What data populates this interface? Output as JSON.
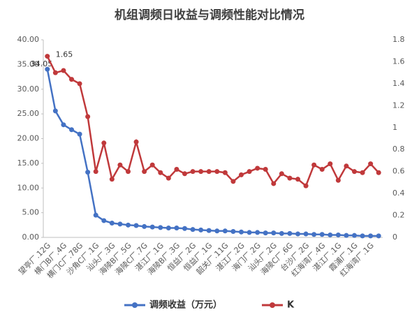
{
  "chart_data": {
    "type": "line",
    "title": "机组调频日收益与调频性能对比情况",
    "categories": [
      "望亭厂.12G",
      null,
      "横门B厂.4G",
      null,
      "横门C厂.78G",
      null,
      "沙角C厂.1G",
      null,
      "汕头厂.3G",
      null,
      "海陵B厂.5G",
      null,
      "海陵C厂.7G",
      null,
      "湛江厂.1G",
      null,
      "海陵B厂.3G",
      null,
      "恒益厂.2G",
      null,
      "恒益厂.1G",
      null,
      "韶关厂.11G",
      null,
      "湛江厂.2G",
      null,
      "海门厂.2G",
      null,
      "汕头厂.2G",
      null,
      "海陵C厂.6G",
      null,
      "台沙厂.2G",
      null,
      "红海湾厂.4G",
      null,
      "湛江厂.1G",
      null,
      "霞浦厂.1G",
      null,
      "红海湾厂.1G",
      null
    ],
    "series": [
      {
        "name": "调频收益（万元）",
        "color": "#4472c4",
        "values": [
          34.05,
          25.6,
          22.8,
          21.8,
          20.9,
          13.2,
          4.5,
          3.4,
          2.9,
          2.7,
          2.5,
          2.4,
          2.2,
          2.1,
          2.0,
          1.9,
          1.9,
          1.8,
          1.6,
          1.5,
          1.4,
          1.3,
          1.3,
          1.2,
          1.1,
          1.0,
          1.0,
          0.9,
          0.9,
          0.8,
          0.8,
          0.7,
          0.7,
          0.6,
          0.6,
          0.5,
          0.5,
          0.4,
          0.4,
          0.3,
          0.3,
          0.3
        ]
      },
      {
        "name": "K",
        "color": "#c0393b",
        "axis": "y2",
        "values": [
          1.65,
          1.5,
          1.52,
          1.44,
          1.4,
          1.1,
          0.6,
          0.86,
          0.53,
          0.66,
          0.6,
          0.87,
          0.6,
          0.66,
          0.59,
          0.54,
          0.62,
          0.58,
          0.6,
          0.6,
          0.6,
          0.6,
          0.59,
          0.51,
          0.57,
          0.6,
          0.63,
          0.62,
          0.49,
          0.58,
          0.54,
          0.53,
          0.47,
          0.66,
          0.62,
          0.67,
          0.52,
          0.65,
          0.6,
          0.59,
          0.67,
          0.59
        ]
      }
    ],
    "ylim": [
      0,
      40
    ],
    "yticks": [
      {
        "value": 0,
        "label": "0.00"
      },
      {
        "value": 5,
        "label": "5.00"
      },
      {
        "value": 10,
        "label": "10.00"
      },
      {
        "value": 15,
        "label": "15.00"
      },
      {
        "value": 20,
        "label": "20.00"
      },
      {
        "value": 25,
        "label": "25.00"
      },
      {
        "value": 30,
        "label": "30.00"
      },
      {
        "value": 35,
        "label": "35.00"
      },
      {
        "value": 40,
        "label": "40.00"
      }
    ],
    "y2lim": [
      0,
      1.8
    ],
    "y2ticks": [
      0,
      0.2,
      0.4,
      0.6,
      0.8,
      1,
      1.2,
      1.4,
      1.6,
      1.8
    ],
    "grid": false
  }
}
